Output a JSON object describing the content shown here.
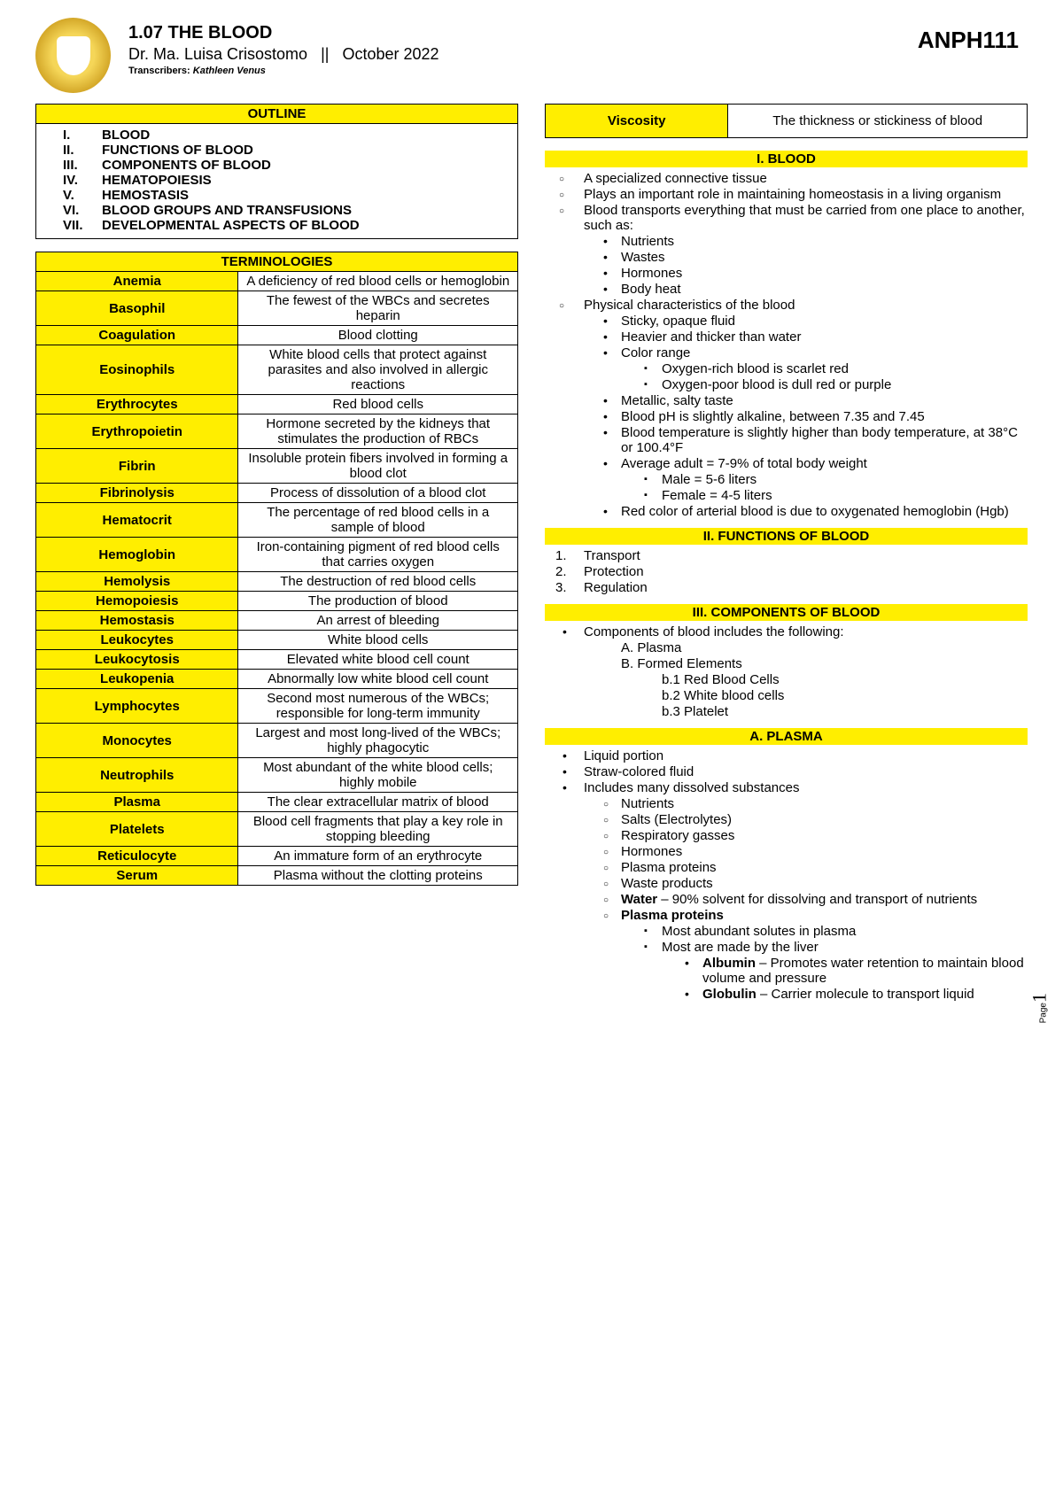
{
  "header": {
    "title": "1.07 THE BLOOD",
    "lecturer": "Dr. Ma. Luisa Crisostomo",
    "sep": "||",
    "date": "October 2022",
    "transcribers_label": "Transcribers:",
    "transcribers": "Kathleen Venus",
    "course": "ANPH111"
  },
  "outline": {
    "header": "OUTLINE",
    "items": [
      {
        "n": "I.",
        "t": "BLOOD"
      },
      {
        "n": "II.",
        "t": "FUNCTIONS OF BLOOD"
      },
      {
        "n": "III.",
        "t": "COMPONENTS OF BLOOD"
      },
      {
        "n": "IV.",
        "t": "HEMATOPOIESIS"
      },
      {
        "n": "V.",
        "t": "HEMOSTASIS"
      },
      {
        "n": "VI.",
        "t": "BLOOD GROUPS AND TRANSFUSIONS"
      },
      {
        "n": "VII.",
        "t": "DEVELOPMENTAL ASPECTS OF BLOOD"
      }
    ]
  },
  "terminologies": {
    "header": "TERMINOLOGIES",
    "rows": [
      {
        "k": "Anemia",
        "v": "A deficiency of red blood cells or hemoglobin"
      },
      {
        "k": "Basophil",
        "v": "The fewest of the WBCs and secretes heparin"
      },
      {
        "k": "Coagulation",
        "v": "Blood clotting"
      },
      {
        "k": "Eosinophils",
        "v": "White blood cells that protect against parasites and also involved in allergic reactions"
      },
      {
        "k": "Erythrocytes",
        "v": "Red blood cells"
      },
      {
        "k": "Erythropoietin",
        "v": "Hormone secreted by the kidneys that stimulates the production of RBCs"
      },
      {
        "k": "Fibrin",
        "v": "Insoluble protein fibers involved in forming a blood clot"
      },
      {
        "k": "Fibrinolysis",
        "v": "Process of dissolution of a blood clot"
      },
      {
        "k": "Hematocrit",
        "v": "The percentage of red blood cells in a sample of blood"
      },
      {
        "k": "Hemoglobin",
        "v": "Iron-containing pigment of red blood cells that carries oxygen"
      },
      {
        "k": "Hemolysis",
        "v": "The destruction of red blood cells"
      },
      {
        "k": "Hemopoiesis",
        "v": "The production of blood"
      },
      {
        "k": "Hemostasis",
        "v": "An arrest of bleeding"
      },
      {
        "k": "Leukocytes",
        "v": "White blood cells"
      },
      {
        "k": "Leukocytosis",
        "v": "Elevated white blood cell count"
      },
      {
        "k": "Leukopenia",
        "v": "Abnormally low white blood cell count"
      },
      {
        "k": "Lymphocytes",
        "v": "Second most numerous of the WBCs; responsible for long-term immunity"
      },
      {
        "k": "Monocytes",
        "v": "Largest and most long-lived of the WBCs; highly phagocytic"
      },
      {
        "k": "Neutrophils",
        "v": "Most abundant of the white blood cells; highly mobile"
      },
      {
        "k": "Plasma",
        "v": "The clear extracellular matrix of blood"
      },
      {
        "k": "Platelets",
        "v": "Blood cell fragments that play a key role in stopping bleeding"
      },
      {
        "k": "Reticulocyte",
        "v": "An immature form of an erythrocyte"
      },
      {
        "k": "Serum",
        "v": "Plasma without the clotting proteins"
      }
    ]
  },
  "viscosity": {
    "k": "Viscosity",
    "v": "The thickness or stickiness of blood"
  },
  "sections": {
    "blood_hd": "I. BLOOD",
    "blood": {
      "a": "A specialized connective tissue",
      "b": "Plays an important role in maintaining homeostasis in a living organism",
      "c": "Blood transports everything that must be carried from one place to another, such as:",
      "c1": "Nutrients",
      "c2": "Wastes",
      "c3": "Hormones",
      "c4": "Body heat",
      "d": "Physical characteristics of the blood",
      "d1": "Sticky, opaque fluid",
      "d2": "Heavier and thicker than water",
      "d3": "Color range",
      "d3a": "Oxygen-rich blood is scarlet red",
      "d3b": "Oxygen-poor blood is dull red or purple",
      "d4": "Metallic, salty taste",
      "d5": "Blood pH is slightly alkaline, between 7.35 and 7.45",
      "d6": "Blood temperature is slightly higher than body temperature, at 38°C or 100.4°F",
      "d7": "Average adult = 7-9% of total body weight",
      "d7a": "Male = 5-6 liters",
      "d7b": "Female = 4-5 liters",
      "d8": "Red color of arterial blood is due to oxygenated hemoglobin (Hgb)"
    },
    "func_hd": "II. FUNCTIONS OF BLOOD",
    "func": {
      "a": "Transport",
      "b": "Protection",
      "c": "Regulation"
    },
    "comp_hd": "III. COMPONENTS OF BLOOD",
    "comp": {
      "a": "Components of blood includes the following:",
      "a1": "A. Plasma",
      "a2": "B. Formed Elements",
      "a2a": "b.1 Red Blood Cells",
      "a2b": "b.2 White blood cells",
      "a2c": "b.3 Platelet"
    },
    "plasma_hd": "A. PLASMA",
    "plasma": {
      "a": "Liquid portion",
      "b": "Straw-colored fluid",
      "c": "Includes many dissolved substances",
      "c1": "Nutrients",
      "c2": "Salts (Electrolytes)",
      "c3": "Respiratory gasses",
      "c4": "Hormones",
      "c5": "Plasma proteins",
      "c6": "Waste products",
      "c7b": "Water",
      "c7": " – 90% solvent for dissolving and transport of nutrients",
      "c8": "Plasma proteins",
      "c8a": "Most abundant solutes in plasma",
      "c8b": "Most are made by the liver",
      "c8b1b": "Albumin",
      "c8b1": " – Promotes water retention to maintain blood volume and pressure",
      "c8b2b": "Globulin",
      "c8b2": " – Carrier molecule to transport liquid"
    }
  },
  "page": {
    "label": "Page",
    "num": "1"
  },
  "colors": {
    "highlight": "#ffee00",
    "text": "#000000",
    "background": "#ffffff"
  }
}
